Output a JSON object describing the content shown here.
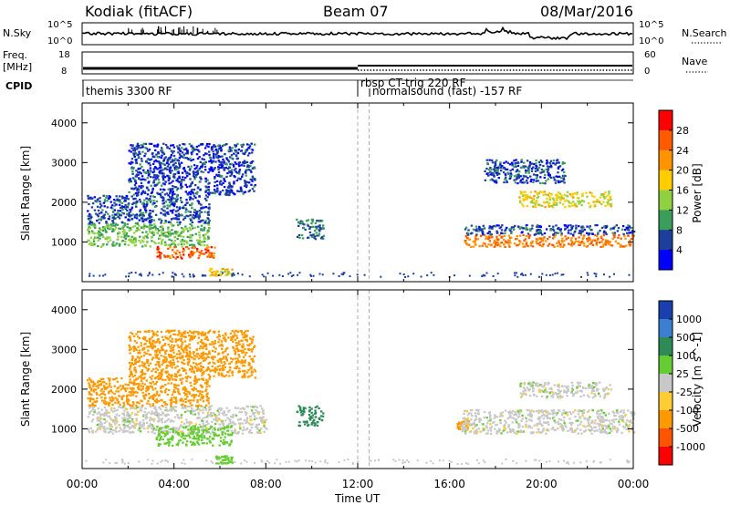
{
  "header": {
    "station": "Kodiak (fitACF)",
    "beam": "Beam 07",
    "date": "08/Mar/2016"
  },
  "top_panels": {
    "nsky_label": "N.Sky",
    "nsky_ticks": [
      "10^5",
      "10^0"
    ],
    "nsearch_label": "N.Search",
    "nsearch_ticks": [
      "10^5",
      "10^0"
    ],
    "freq_label": "Freq.",
    "freq_unit": "[MHz]",
    "freq_ticks": [
      "18",
      "8"
    ],
    "nave_label": "Nave",
    "nave_ticks": [
      "60",
      "0"
    ],
    "cpid_label": "CPID",
    "cpid_segments": [
      {
        "label": "themis 3300 RF",
        "start_hour": 0
      },
      {
        "label": "rbsp CT-trig 220 RF",
        "start_hour": 12
      },
      {
        "label": "normalsound (fast) -157 RF",
        "start_hour": 12.5
      }
    ]
  },
  "chart_data": [
    {
      "type": "heatmap",
      "panel": "power",
      "xlabel": "",
      "ylabel": "Slant Range [km]",
      "xlim": [
        0,
        24
      ],
      "ylim": [
        0,
        4500
      ],
      "yticks": [
        "1000",
        "2000",
        "3000",
        "4000"
      ],
      "colorbar_label": "Power [dB]",
      "colorbar_ticks": [
        "28",
        "24",
        "20",
        "16",
        "12",
        "8",
        "4"
      ],
      "colorbar_colors": [
        "#ff0000",
        "#ff5a00",
        "#ff9400",
        "#ffcc00",
        "#8fd140",
        "#3a9e5a",
        "#1c3f9e",
        "#0000ff"
      ],
      "regions": [
        {
          "t0": 0.2,
          "t1": 5.5,
          "r0": 900,
          "r1": 1500,
          "level": 12
        },
        {
          "t0": 0.2,
          "t1": 5.5,
          "r0": 1500,
          "r1": 2200,
          "level": 6
        },
        {
          "t0": 2.0,
          "t1": 7.5,
          "r0": 2200,
          "r1": 3500,
          "level": 5
        },
        {
          "t0": 3.2,
          "t1": 5.8,
          "r0": 600,
          "r1": 900,
          "level": 26
        },
        {
          "t0": 5.5,
          "t1": 6.5,
          "r0": 150,
          "r1": 350,
          "level": 18
        },
        {
          "t0": 9.3,
          "t1": 10.5,
          "r0": 1100,
          "r1": 1600,
          "level": 8
        },
        {
          "t0": 16.5,
          "t1": 24.0,
          "r0": 900,
          "r1": 1200,
          "level": 24
        },
        {
          "t0": 16.5,
          "t1": 24.0,
          "r0": 1200,
          "r1": 1450,
          "level": 6
        },
        {
          "t0": 19.0,
          "t1": 23.0,
          "r0": 1900,
          "r1": 2300,
          "level": 17
        },
        {
          "t0": 17.5,
          "t1": 21.0,
          "r0": 2500,
          "r1": 3100,
          "level": 6
        }
      ]
    },
    {
      "type": "heatmap",
      "panel": "velocity",
      "xlabel": "Time UT",
      "ylabel": "Slant Range [km]",
      "xlim": [
        0,
        24
      ],
      "ylim": [
        0,
        4500
      ],
      "xticks": [
        "00:00",
        "04:00",
        "08:00",
        "12:00",
        "16:00",
        "20:00",
        "00:00"
      ],
      "yticks": [
        "1000",
        "2000",
        "3000",
        "4000"
      ],
      "colorbar_label": "Velocity [m s^-1]",
      "colorbar_ticks": [
        "1000",
        "500",
        "100",
        "25",
        "-25",
        "-100",
        "-500",
        "-1000"
      ],
      "colorbar_colors": [
        "#1c3fb0",
        "#3a7fd0",
        "#2e8b57",
        "#66cc33",
        "#c8c8c8",
        "#ffcc33",
        "#ff9900",
        "#ff5500",
        "#ff0000"
      ],
      "regions": [
        {
          "t0": 0.2,
          "t1": 8.0,
          "r0": 900,
          "r1": 1600,
          "velocity": 0
        },
        {
          "t0": 0.2,
          "t1": 5.5,
          "r0": 1600,
          "r1": 2300,
          "velocity": -150
        },
        {
          "t0": 2.0,
          "t1": 7.5,
          "r0": 2300,
          "r1": 3500,
          "velocity": -150
        },
        {
          "t0": 3.2,
          "t1": 6.5,
          "r0": 600,
          "r1": 1100,
          "velocity": 60
        },
        {
          "t0": 5.8,
          "t1": 6.5,
          "r0": 150,
          "r1": 350,
          "velocity": 60
        },
        {
          "t0": 9.3,
          "t1": 10.5,
          "r0": 1100,
          "r1": 1600,
          "velocity": 400
        },
        {
          "t0": 16.3,
          "t1": 16.8,
          "r0": 1000,
          "r1": 1250,
          "velocity": -300
        },
        {
          "t0": 16.5,
          "t1": 24.0,
          "r0": 900,
          "r1": 1500,
          "velocity": 0
        },
        {
          "t0": 19.0,
          "t1": 23.0,
          "r0": 1800,
          "r1": 2200,
          "velocity": 0
        }
      ]
    }
  ]
}
